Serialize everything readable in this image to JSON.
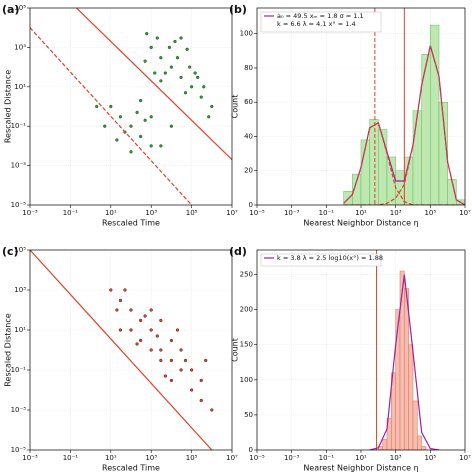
{
  "chart_data": [
    {
      "type": "scatter",
      "label": "(a)",
      "xlabel": "Rescaled Time",
      "ylabel": "Rescaled Distance",
      "log": true,
      "grid": true,
      "xlim": [
        0.001,
        10000000
      ],
      "ylim": [
        1e-05,
        100000
      ],
      "xticks": [
        {
          "value": 0.001,
          "label": "10⁻³"
        },
        {
          "value": 0.1,
          "label": "10⁻¹"
        },
        {
          "value": 10,
          "label": "10¹"
        },
        {
          "value": 1000,
          "label": "10³"
        },
        {
          "value": 100000,
          "label": "10⁵"
        },
        {
          "value": 10000000,
          "label": "10⁷"
        }
      ],
      "yticks": [
        {
          "value": 1e-05,
          "label": "10⁻⁵"
        },
        {
          "value": 0.001,
          "label": "10⁻³"
        },
        {
          "value": 0.1,
          "label": "10⁻¹"
        },
        {
          "value": 10,
          "label": "10¹"
        },
        {
          "value": 1000,
          "label": "10³"
        },
        {
          "value": 100000,
          "label": "10⁵"
        }
      ],
      "color": "#2f9a2f",
      "edgecolor": "#0b3a0b",
      "x": [
        1000,
        3000,
        10000,
        30000,
        100000,
        300000,
        2000,
        20000,
        200000,
        5000,
        50000,
        1000000,
        500,
        8000,
        80000,
        600,
        15000,
        150000,
        400000,
        3000,
        30000,
        1500,
        700000,
        60000,
        10,
        30,
        100,
        300,
        1000,
        50,
        500,
        20,
        200,
        3000,
        5,
        100,
        2,
        1000,
        10000,
        300
      ],
      "values": [
        1000,
        300,
        100,
        30,
        10,
        3,
        3000,
        300,
        30,
        50,
        5,
        1,
        200,
        1000,
        100,
        5000,
        2000,
        50,
        10,
        20,
        3000,
        50,
        0.3,
        800,
        1,
        0.3,
        0.1,
        0.03,
        0.01,
        0.05,
        0.2,
        0.02,
        0.5,
        0.01,
        0.1,
        0.005,
        1,
        0.3,
        0.1,
        2
      ],
      "lines": [
        {
          "color": "#d9442b",
          "dash": false,
          "x": [
            0.2,
            10000000
          ],
          "values": [
            100000,
            0.002
          ]
        },
        {
          "color": "#d9442b",
          "dash": true,
          "x": [
            0.001,
            100000
          ],
          "values": [
            10000,
            1e-05
          ]
        }
      ]
    },
    {
      "type": "histogram",
      "label": "(b)",
      "xlabel": "Nearest Neighbor Distance η",
      "ylabel": "Count",
      "log": true,
      "grid": true,
      "xlim": [
        1e-05,
        10000000
      ],
      "ylim": [
        0,
        115
      ],
      "xticks": [
        {
          "value": 1e-05,
          "label": "10⁻⁵"
        },
        {
          "value": 0.001,
          "label": "10⁻³"
        },
        {
          "value": 0.1,
          "label": "10⁻¹"
        },
        {
          "value": 10,
          "label": "10¹"
        },
        {
          "value": 1000,
          "label": "10³"
        },
        {
          "value": 100000,
          "label": "10⁵"
        },
        {
          "value": 10000000,
          "label": "10⁷"
        }
      ],
      "yticks": [
        0,
        20,
        40,
        60,
        80,
        100
      ],
      "color": "#bfe8b0",
      "edgecolor": "#5cbf5c",
      "bins": [
        1,
        3.16,
        10,
        31.6,
        100,
        316,
        1000,
        3162,
        10000,
        31623,
        100000,
        316228,
        1000000,
        3162278,
        10000000
      ],
      "values": [
        8,
        18,
        38,
        50,
        44,
        28,
        20,
        28,
        55,
        88,
        105,
        60,
        15,
        3
      ],
      "legend": [
        "a₀ = 49.5  xₘ = 1.8  σ = 1.1",
        "k = 6.6  λ = 4.1  x° = 1.4"
      ],
      "curve_x": [
        1,
        3.16,
        10,
        31.6,
        100,
        316,
        1000,
        3162,
        10000,
        31623,
        100000,
        316228,
        1000000,
        3162278,
        10000000
      ],
      "curves": [
        {
          "color": "#a020a0",
          "dash": false,
          "values": [
            1,
            6,
            22,
            45,
            48,
            31,
            14,
            14,
            35,
            70,
            93,
            75,
            25,
            3,
            0
          ]
        },
        {
          "color": "#d9442b",
          "dash": true,
          "values": [
            1,
            6,
            22,
            45,
            48,
            30,
            10,
            2,
            0,
            0,
            0,
            0,
            0,
            0,
            0
          ]
        },
        {
          "color": "#d9442b",
          "dash": true,
          "values": [
            0,
            0,
            0,
            0,
            0,
            1,
            4,
            12,
            35,
            70,
            93,
            75,
            25,
            3,
            0
          ]
        }
      ],
      "vlines": [
        {
          "x": 63,
          "color": "#d9442b",
          "dash": true
        },
        {
          "x": 3162,
          "color": "#d9442b",
          "dash": false
        }
      ]
    },
    {
      "type": "scatter",
      "label": "(c)",
      "xlabel": "Rescaled Time",
      "ylabel": "Rescaled Distance",
      "log": true,
      "grid": true,
      "xlim": [
        0.001,
        10000000
      ],
      "ylim": [
        1e-05,
        100000
      ],
      "xticks": [
        {
          "value": 0.001,
          "label": "10⁻³"
        },
        {
          "value": 0.1,
          "label": "10⁻¹"
        },
        {
          "value": 10,
          "label": "10¹"
        },
        {
          "value": 1000,
          "label": "10³"
        },
        {
          "value": 100000,
          "label": "10⁵"
        },
        {
          "value": 10000000,
          "label": "10⁷"
        }
      ],
      "yticks": [
        {
          "value": 1e-05,
          "label": "10⁻⁵"
        },
        {
          "value": 0.001,
          "label": "10⁻³"
        },
        {
          "value": 0.1,
          "label": "10⁻¹"
        },
        {
          "value": 10,
          "label": "10¹"
        },
        {
          "value": 1000,
          "label": "10³"
        },
        {
          "value": 100000,
          "label": "10⁵"
        }
      ],
      "color": "#e0452c",
      "edgecolor": "#2a0500",
      "x": [
        10,
        30,
        100,
        300,
        1000,
        3000,
        10000,
        30000,
        100000,
        300000,
        1000000,
        100,
        300,
        1000,
        3000,
        10000,
        1000,
        3000,
        10000,
        30000,
        100000,
        30,
        50,
        200,
        500,
        2000,
        5000,
        20000,
        50000,
        300000,
        20,
        500000
      ],
      "values": [
        1000,
        300,
        100,
        30,
        10,
        1,
        0.3,
        0.1,
        0.01,
        0.003,
        0.001,
        10,
        3,
        1,
        0.3,
        0.03,
        100,
        30,
        3,
        1,
        0.1,
        10,
        1000,
        2,
        50,
        5,
        0.05,
        10,
        0.3,
        0.03,
        100,
        0.3
      ],
      "lines": [
        {
          "color": "#d9442b",
          "dash": false,
          "x": [
            0.001,
            1000000
          ],
          "values": [
            100000,
            1e-05
          ]
        }
      ]
    },
    {
      "type": "histogram",
      "label": "(d)",
      "xlabel": "Nearest Neighbor Distance η",
      "ylabel": "Count",
      "log": true,
      "grid": true,
      "xlim": [
        1e-05,
        10000000
      ],
      "ylim": [
        0,
        285
      ],
      "xticks": [
        {
          "value": 1e-05,
          "label": "10⁻⁵"
        },
        {
          "value": 0.001,
          "label": "10⁻³"
        },
        {
          "value": 0.1,
          "label": "10⁻¹"
        },
        {
          "value": 10,
          "label": "10¹"
        },
        {
          "value": 1000,
          "label": "10³"
        },
        {
          "value": 100000,
          "label": "10⁵"
        },
        {
          "value": 10000000,
          "label": "10⁷"
        }
      ],
      "yticks": [
        0,
        50,
        100,
        150,
        200,
        250
      ],
      "color": "#f6bcae",
      "edgecolor": "#e0705c",
      "bins": [
        100,
        178,
        316,
        562,
        1000,
        1778,
        3162,
        5623,
        10000,
        17783,
        31623,
        56234
      ],
      "values": [
        5,
        15,
        45,
        110,
        200,
        255,
        230,
        150,
        70,
        20,
        5
      ],
      "legend": [
        "k = 3.8  λ = 2.5  log10(x°) = 1.88"
      ],
      "curve_x": [
        31.6,
        100,
        316,
        1000,
        3162,
        10000,
        31623,
        100000,
        316228
      ],
      "curves": [
        {
          "color": "#a020a0",
          "dash": false,
          "values": [
            0,
            3,
            30,
            150,
            250,
            140,
            25,
            2,
            0
          ]
        }
      ],
      "vlines": [
        {
          "x": 79,
          "color": "#d9442b",
          "dash": false
        }
      ]
    }
  ]
}
